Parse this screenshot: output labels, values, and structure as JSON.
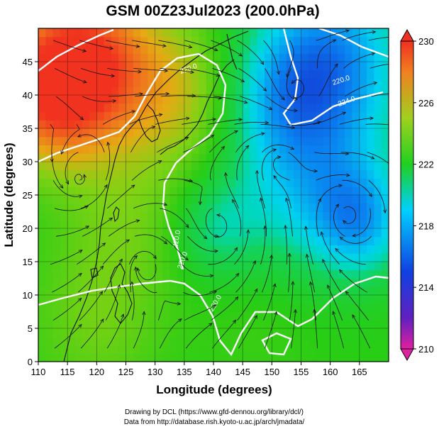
{
  "chart_data": {
    "type": "heatmap",
    "title": "GSM 00Z23Jul2023 (200.0hPa)",
    "xlabel": "Longitude (degrees)",
    "ylabel": "Latitude  (degrees)",
    "xlim": [
      110,
      170
    ],
    "ylim": [
      0,
      50
    ],
    "x_ticks": [
      "110",
      "115",
      "120",
      "125",
      "130",
      "135",
      "140",
      "145",
      "150",
      "155",
      "160",
      "165"
    ],
    "y_ticks": [
      "0",
      "5",
      "10",
      "15",
      "20",
      "25",
      "30",
      "35",
      "40",
      "45"
    ],
    "colorbar": {
      "min": 210,
      "max": 230,
      "ticks": [
        "230",
        "226",
        "222",
        "218",
        "214",
        "210"
      ],
      "colors": [
        "#e020a0",
        "#1020c0",
        "#00d0ff",
        "#20d020",
        "#a0d020",
        "#f08020",
        "#f03020"
      ]
    },
    "temperature_field_approx": {
      "note_levels": [
        "229 at 118E 45N",
        "228 at 112E 40N",
        "225 at 135E 40N",
        "217 at 160E 45N",
        "218 at 165E 20N",
        "219 at 140E 20N",
        "224 at 120E 5N"
      ]
    },
    "contour_labels": [
      "220.0",
      "224.0",
      "220.0",
      "220.0",
      "220.0",
      "220.0"
    ],
    "vortex_centers": [
      {
        "lon": 117,
        "lat": 27
      },
      {
        "lon": 128,
        "lat": 15
      },
      {
        "lon": 141,
        "lat": 20
      },
      {
        "lon": 151,
        "lat": 30
      },
      {
        "lon": 154,
        "lat": 40
      },
      {
        "lon": 163,
        "lat": 22
      }
    ]
  },
  "footer": {
    "line1": "Drawing by DCL (https://www.gfd-dennou.org/library/dcl/)",
    "line2": "Data from http://database.rish.kyoto-u.ac.jp/arch/jmadata/"
  }
}
